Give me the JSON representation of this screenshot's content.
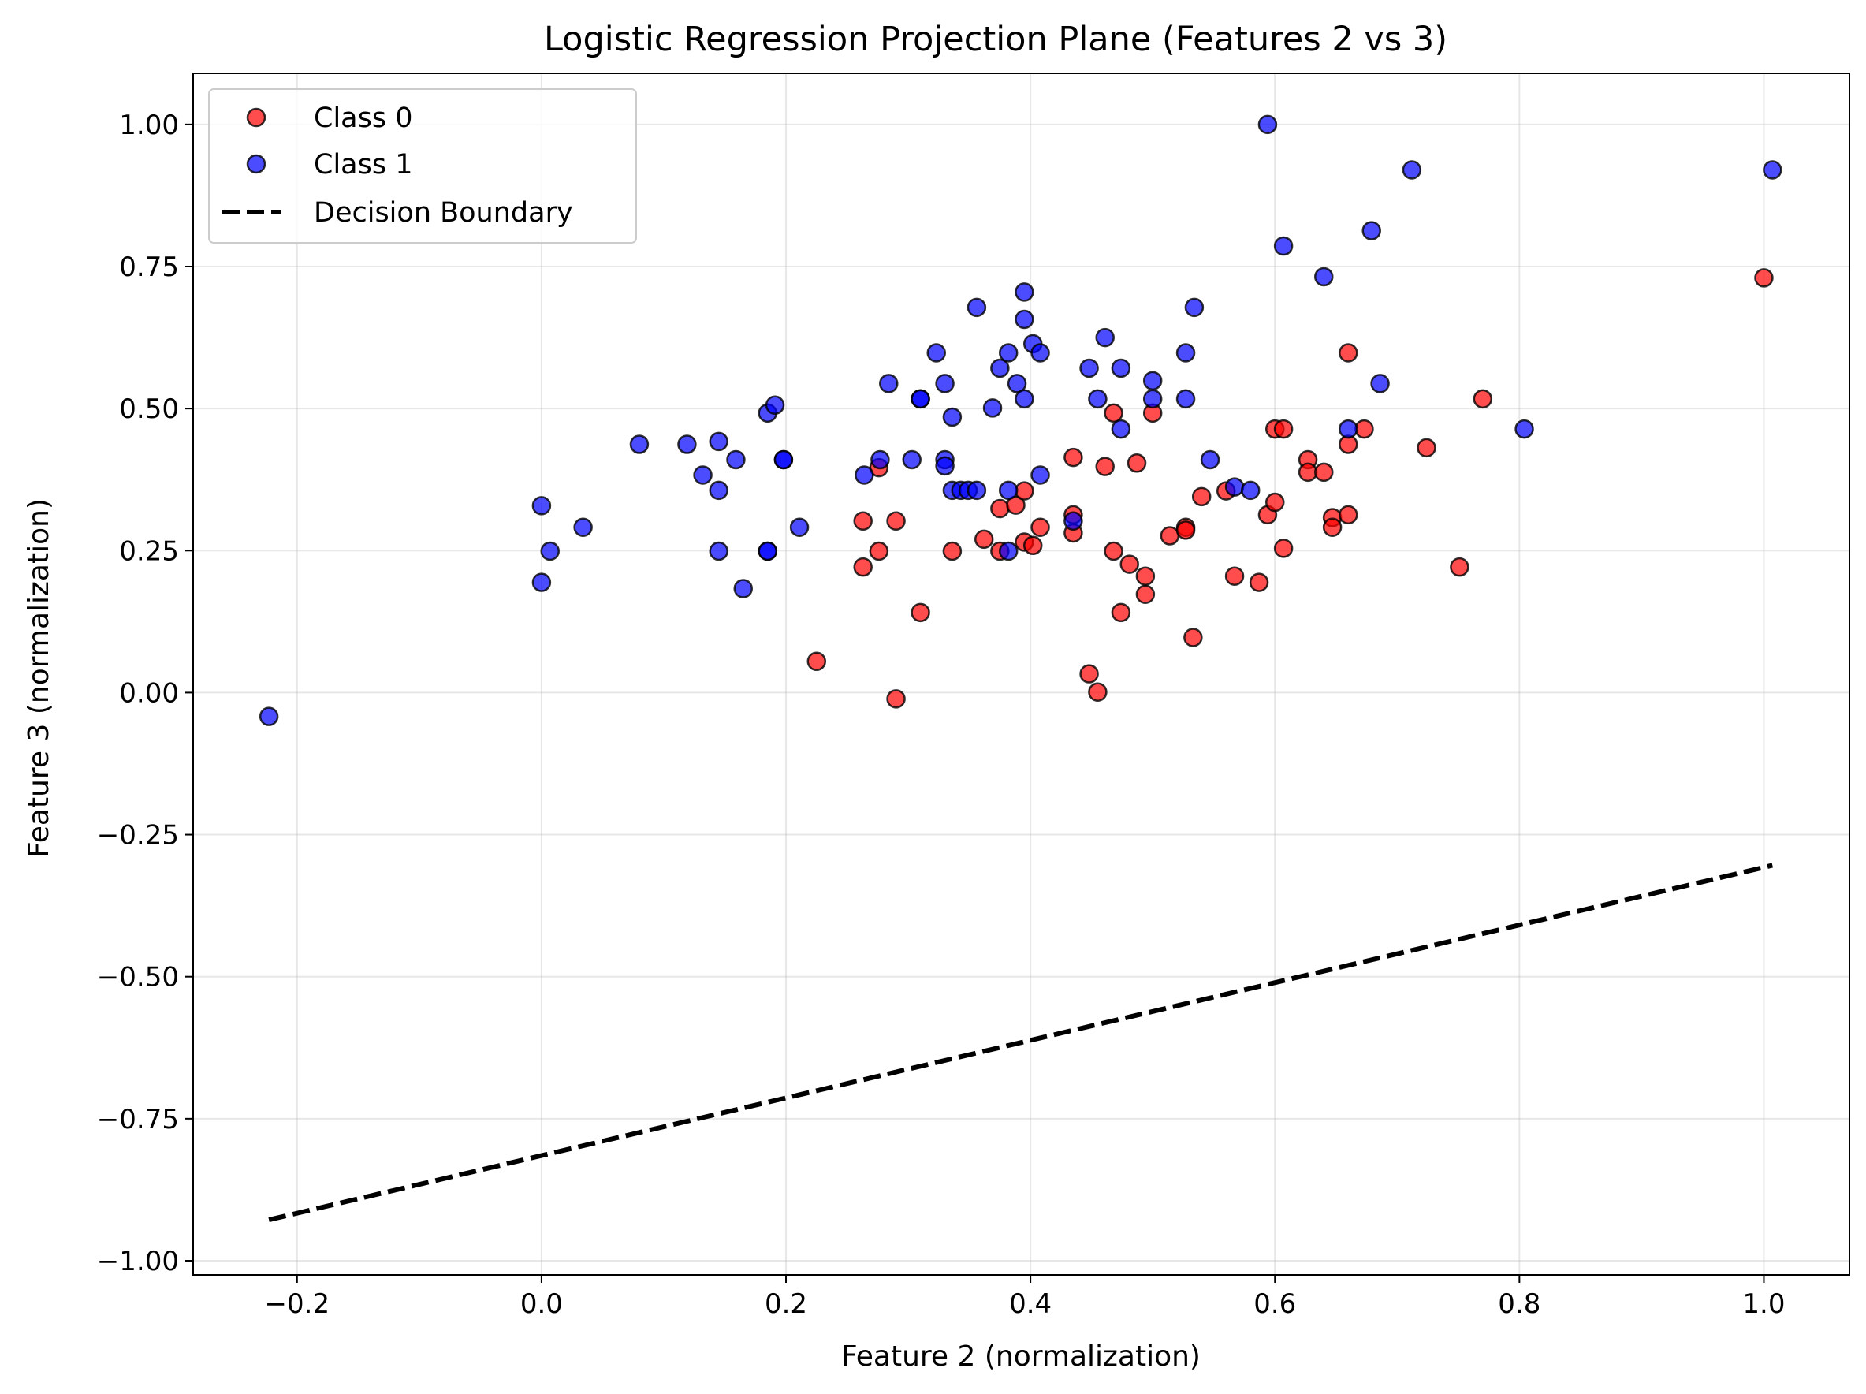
{
  "chart_data": {
    "type": "scatter",
    "title": "Logistic Regression Projection Plane (Features 2 vs 3)",
    "xlabel": "Feature 2 (normalization)",
    "ylabel": "Feature 3 (normalization)",
    "xlim": [
      -0.285,
      1.07
    ],
    "ylim": [
      -1.025,
      1.09
    ],
    "xticks": [
      -0.2,
      0.0,
      0.2,
      0.4,
      0.6,
      0.8,
      1.0
    ],
    "xtick_labels": [
      "−0.2",
      "0.0",
      "0.2",
      "0.4",
      "0.6",
      "0.8",
      "1.0"
    ],
    "yticks": [
      -1.0,
      -0.75,
      -0.5,
      -0.25,
      0.0,
      0.25,
      0.5,
      0.75,
      1.0
    ],
    "ytick_labels": [
      "−1.00",
      "−0.75",
      "−0.50",
      "−0.25",
      "0.00",
      "0.25",
      "0.50",
      "0.75",
      "1.00"
    ],
    "grid": true,
    "legend_position": "top-left",
    "series": [
      {
        "name": "Class 0",
        "kind": "scatter",
        "color": "#ff0000",
        "points": [
          [
            0.225,
            0.055
          ],
          [
            0.263,
            0.302
          ],
          [
            0.263,
            0.221
          ],
          [
            0.276,
            0.396
          ],
          [
            0.276,
            0.249
          ],
          [
            0.29,
            0.302
          ],
          [
            0.29,
            -0.011
          ],
          [
            0.31,
            0.141
          ],
          [
            0.336,
            0.249
          ],
          [
            0.362,
            0.27
          ],
          [
            0.375,
            0.324
          ],
          [
            0.375,
            0.249
          ],
          [
            0.388,
            0.33
          ],
          [
            0.395,
            0.355
          ],
          [
            0.395,
            0.265
          ],
          [
            0.402,
            0.259
          ],
          [
            0.408,
            0.291
          ],
          [
            0.435,
            0.414
          ],
          [
            0.435,
            0.313
          ],
          [
            0.435,
            0.281
          ],
          [
            0.448,
            0.033
          ],
          [
            0.455,
            0.001
          ],
          [
            0.461,
            0.398
          ],
          [
            0.468,
            0.492
          ],
          [
            0.468,
            0.249
          ],
          [
            0.474,
            0.141
          ],
          [
            0.481,
            0.226
          ],
          [
            0.487,
            0.404
          ],
          [
            0.494,
            0.205
          ],
          [
            0.494,
            0.173
          ],
          [
            0.5,
            0.492
          ],
          [
            0.514,
            0.276
          ],
          [
            0.527,
            0.291
          ],
          [
            0.527,
            0.286
          ],
          [
            0.533,
            0.097
          ],
          [
            0.54,
            0.345
          ],
          [
            0.56,
            0.355
          ],
          [
            0.567,
            0.205
          ],
          [
            0.587,
            0.194
          ],
          [
            0.594,
            0.313
          ],
          [
            0.6,
            0.464
          ],
          [
            0.6,
            0.335
          ],
          [
            0.607,
            0.464
          ],
          [
            0.607,
            0.254
          ],
          [
            0.627,
            0.41
          ],
          [
            0.627,
            0.388
          ],
          [
            0.64,
            0.388
          ],
          [
            0.647,
            0.308
          ],
          [
            0.647,
            0.291
          ],
          [
            0.66,
            0.598
          ],
          [
            0.66,
            0.437
          ],
          [
            0.66,
            0.313
          ],
          [
            0.673,
            0.464
          ],
          [
            0.724,
            0.431
          ],
          [
            0.751,
            0.221
          ],
          [
            0.77,
            0.517
          ],
          [
            1.0,
            0.73
          ]
        ]
      },
      {
        "name": "Class 1",
        "kind": "scatter",
        "color": "#0000ff",
        "points": [
          [
            -0.223,
            -0.042
          ],
          [
            0.0,
            0.329
          ],
          [
            0.0,
            0.194
          ],
          [
            0.007,
            0.249
          ],
          [
            0.034,
            0.291
          ],
          [
            0.08,
            0.437
          ],
          [
            0.119,
            0.437
          ],
          [
            0.132,
            0.383
          ],
          [
            0.145,
            0.442
          ],
          [
            0.145,
            0.356
          ],
          [
            0.145,
            0.249
          ],
          [
            0.159,
            0.41
          ],
          [
            0.165,
            0.183
          ],
          [
            0.185,
            0.492
          ],
          [
            0.185,
            0.249
          ],
          [
            0.185,
            0.249
          ],
          [
            0.191,
            0.506
          ],
          [
            0.198,
            0.41
          ],
          [
            0.198,
            0.41
          ],
          [
            0.211,
            0.291
          ],
          [
            0.264,
            0.383
          ],
          [
            0.277,
            0.41
          ],
          [
            0.284,
            0.544
          ],
          [
            0.303,
            0.41
          ],
          [
            0.31,
            0.517
          ],
          [
            0.31,
            0.517
          ],
          [
            0.323,
            0.598
          ],
          [
            0.33,
            0.544
          ],
          [
            0.33,
            0.41
          ],
          [
            0.33,
            0.399
          ],
          [
            0.336,
            0.485
          ],
          [
            0.336,
            0.356
          ],
          [
            0.343,
            0.356
          ],
          [
            0.349,
            0.356
          ],
          [
            0.356,
            0.356
          ],
          [
            0.356,
            0.678
          ],
          [
            0.369,
            0.501
          ],
          [
            0.375,
            0.571
          ],
          [
            0.382,
            0.598
          ],
          [
            0.382,
            0.356
          ],
          [
            0.382,
            0.249
          ],
          [
            0.389,
            0.544
          ],
          [
            0.395,
            0.705
          ],
          [
            0.395,
            0.657
          ],
          [
            0.395,
            0.517
          ],
          [
            0.402,
            0.614
          ],
          [
            0.408,
            0.598
          ],
          [
            0.408,
            0.383
          ],
          [
            0.435,
            0.302
          ],
          [
            0.448,
            0.571
          ],
          [
            0.455,
            0.517
          ],
          [
            0.461,
            0.625
          ],
          [
            0.474,
            0.571
          ],
          [
            0.474,
            0.464
          ],
          [
            0.5,
            0.549
          ],
          [
            0.5,
            0.517
          ],
          [
            0.527,
            0.598
          ],
          [
            0.527,
            0.517
          ],
          [
            0.534,
            0.678
          ],
          [
            0.547,
            0.41
          ],
          [
            0.567,
            0.362
          ],
          [
            0.58,
            0.356
          ],
          [
            0.594,
            1.0
          ],
          [
            0.607,
            0.786
          ],
          [
            0.64,
            0.732
          ],
          [
            0.66,
            0.464
          ],
          [
            0.679,
            0.813
          ],
          [
            0.686,
            0.544
          ],
          [
            0.712,
            0.92
          ],
          [
            0.804,
            0.464
          ],
          [
            1.007,
            0.92
          ]
        ]
      },
      {
        "name": "Decision Boundary",
        "kind": "line",
        "color": "#000000",
        "dash": "dashed",
        "x": [
          -0.223,
          1.007
        ],
        "y": [
          -0.928,
          -0.304
        ]
      }
    ]
  }
}
